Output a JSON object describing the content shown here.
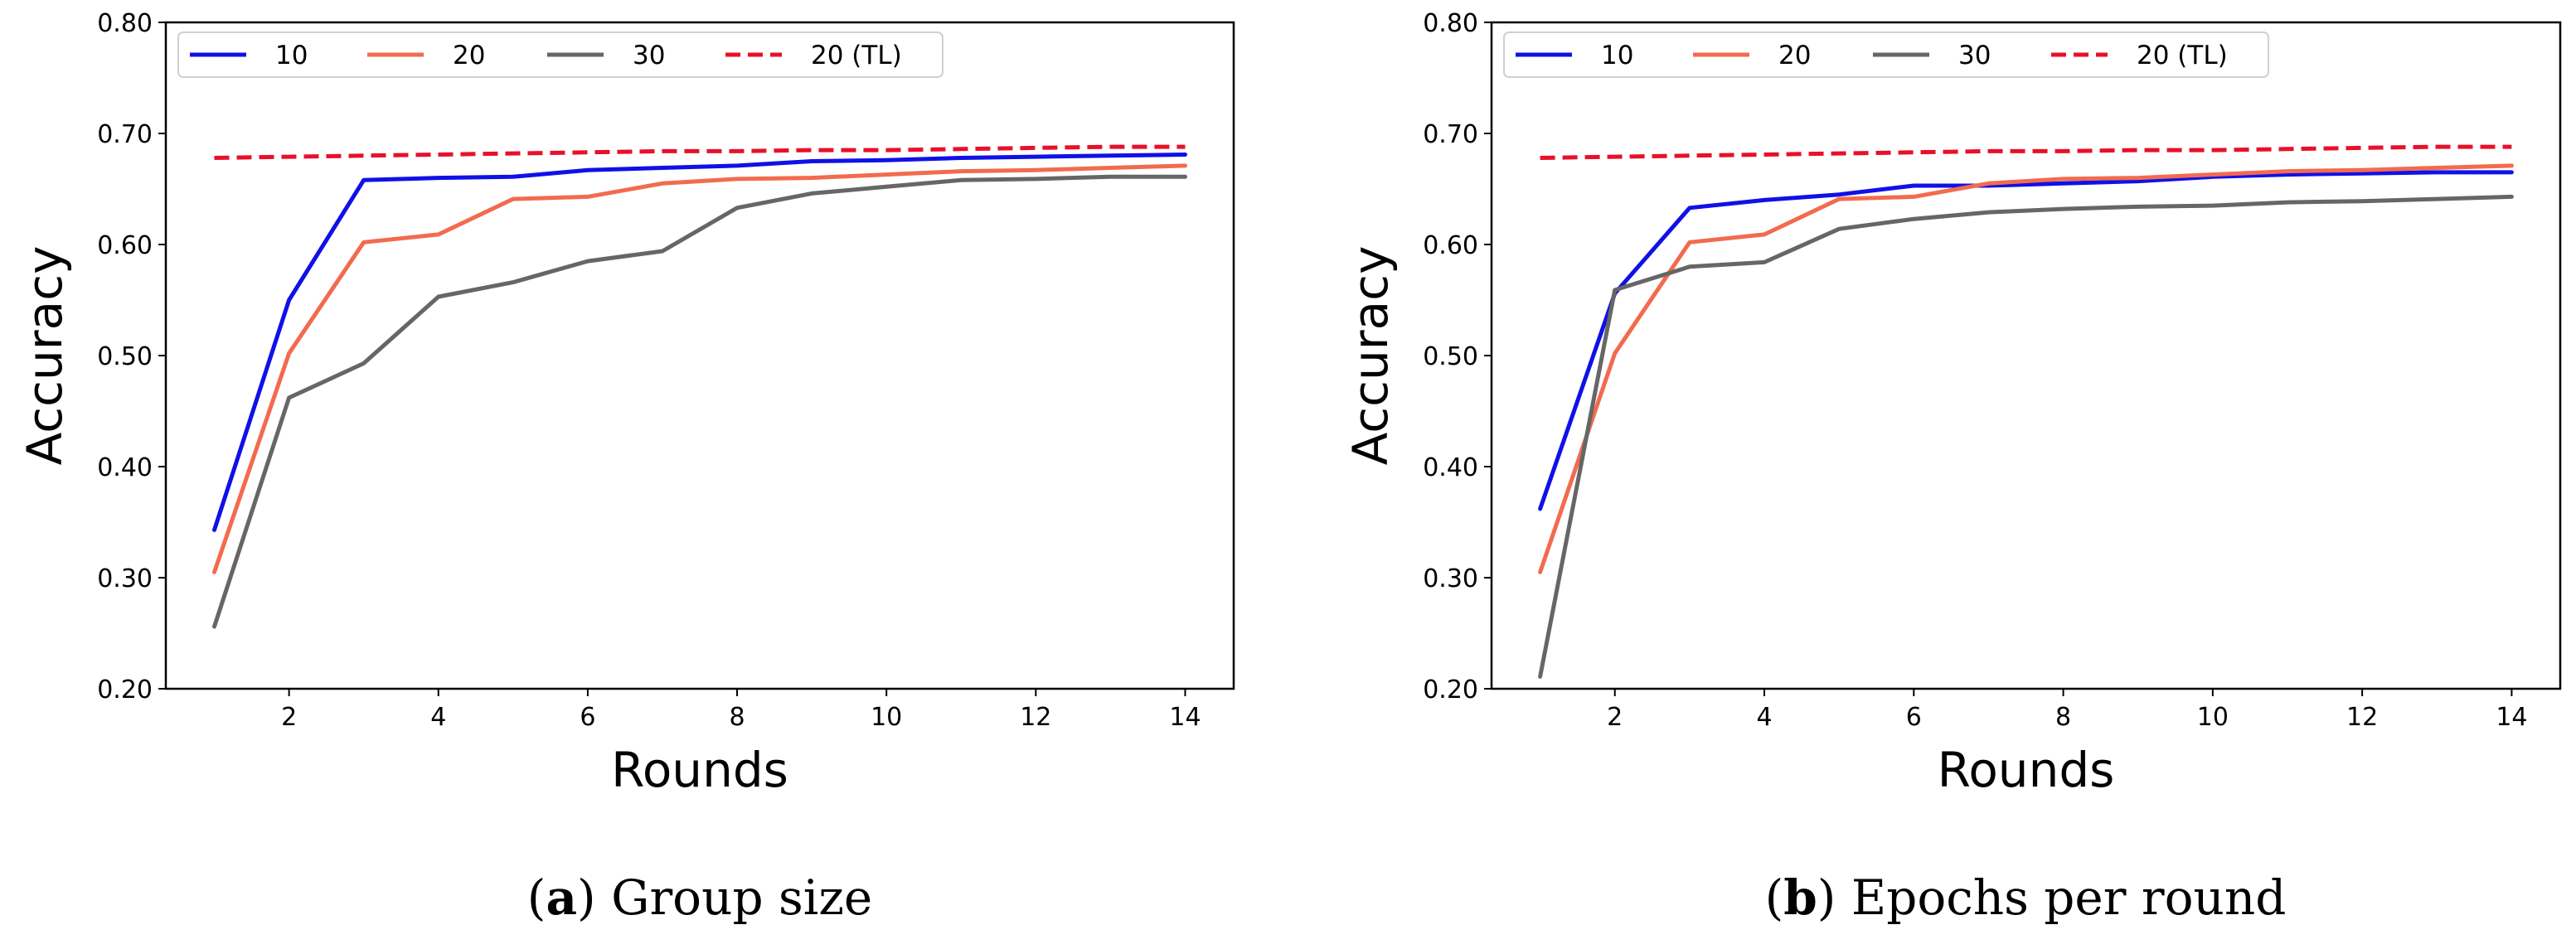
{
  "chart_data": [
    {
      "type": "line",
      "caption": {
        "letter": "a",
        "text": "Group size"
      },
      "xlabel": "Rounds",
      "ylabel": "Accuracy",
      "xlim": [
        0.35,
        14.65
      ],
      "ylim": [
        0.2,
        0.8
      ],
      "xticks": [
        2,
        4,
        6,
        8,
        10,
        12,
        14
      ],
      "yticks": [
        "0.20",
        "0.30",
        "0.40",
        "0.50",
        "0.60",
        "0.70",
        "0.80"
      ],
      "grid": false,
      "legend_position": "top-left",
      "x": [
        1,
        2,
        3,
        4,
        5,
        6,
        7,
        8,
        9,
        10,
        11,
        12,
        13,
        14
      ],
      "series": [
        {
          "name": "10",
          "color": "#1010e8",
          "dash": false,
          "values": [
            0.343,
            0.55,
            0.658,
            0.66,
            0.661,
            0.667,
            0.669,
            0.671,
            0.675,
            0.676,
            0.678,
            0.679,
            0.68,
            0.681
          ]
        },
        {
          "name": "20",
          "color": "#f26b4f",
          "dash": false,
          "values": [
            0.305,
            0.502,
            0.602,
            0.609,
            0.641,
            0.643,
            0.655,
            0.659,
            0.66,
            0.663,
            0.666,
            0.667,
            0.669,
            0.671
          ]
        },
        {
          "name": "30",
          "color": "#666666",
          "dash": false,
          "values": [
            0.256,
            0.462,
            0.493,
            0.553,
            0.566,
            0.585,
            0.594,
            0.633,
            0.646,
            0.652,
            0.658,
            0.659,
            0.661,
            0.661
          ]
        },
        {
          "name": "20 (TL)",
          "color": "#e8102a",
          "dash": true,
          "values": [
            0.678,
            0.679,
            0.68,
            0.681,
            0.682,
            0.683,
            0.684,
            0.684,
            0.685,
            0.685,
            0.686,
            0.687,
            0.688,
            0.688
          ]
        }
      ]
    },
    {
      "type": "line",
      "caption": {
        "letter": "b",
        "text": "Epochs per round"
      },
      "xlabel": "Rounds",
      "ylabel": "Accuracy",
      "xlim": [
        0.35,
        14.65
      ],
      "ylim": [
        0.2,
        0.8
      ],
      "xticks": [
        2,
        4,
        6,
        8,
        10,
        12,
        14
      ],
      "yticks": [
        "0.20",
        "0.30",
        "0.40",
        "0.50",
        "0.60",
        "0.70",
        "0.80"
      ],
      "grid": false,
      "legend_position": "top-left",
      "x": [
        1,
        2,
        3,
        4,
        5,
        6,
        7,
        8,
        9,
        10,
        11,
        12,
        13,
        14
      ],
      "series": [
        {
          "name": "10",
          "color": "#1010e8",
          "dash": false,
          "values": [
            0.362,
            0.556,
            0.633,
            0.64,
            0.645,
            0.653,
            0.653,
            0.655,
            0.657,
            0.661,
            0.663,
            0.664,
            0.665,
            0.665
          ]
        },
        {
          "name": "20",
          "color": "#f26b4f",
          "dash": false,
          "values": [
            0.305,
            0.502,
            0.602,
            0.609,
            0.641,
            0.643,
            0.655,
            0.659,
            0.66,
            0.663,
            0.666,
            0.667,
            0.669,
            0.671
          ]
        },
        {
          "name": "30",
          "color": "#666666",
          "dash": false,
          "values": [
            0.211,
            0.559,
            0.58,
            0.584,
            0.614,
            0.623,
            0.629,
            0.632,
            0.634,
            0.635,
            0.638,
            0.639,
            0.641,
            0.643
          ]
        },
        {
          "name": "20 (TL)",
          "color": "#e8102a",
          "dash": true,
          "values": [
            0.678,
            0.679,
            0.68,
            0.681,
            0.682,
            0.683,
            0.684,
            0.684,
            0.685,
            0.685,
            0.686,
            0.687,
            0.688,
            0.688
          ]
        }
      ]
    }
  ]
}
